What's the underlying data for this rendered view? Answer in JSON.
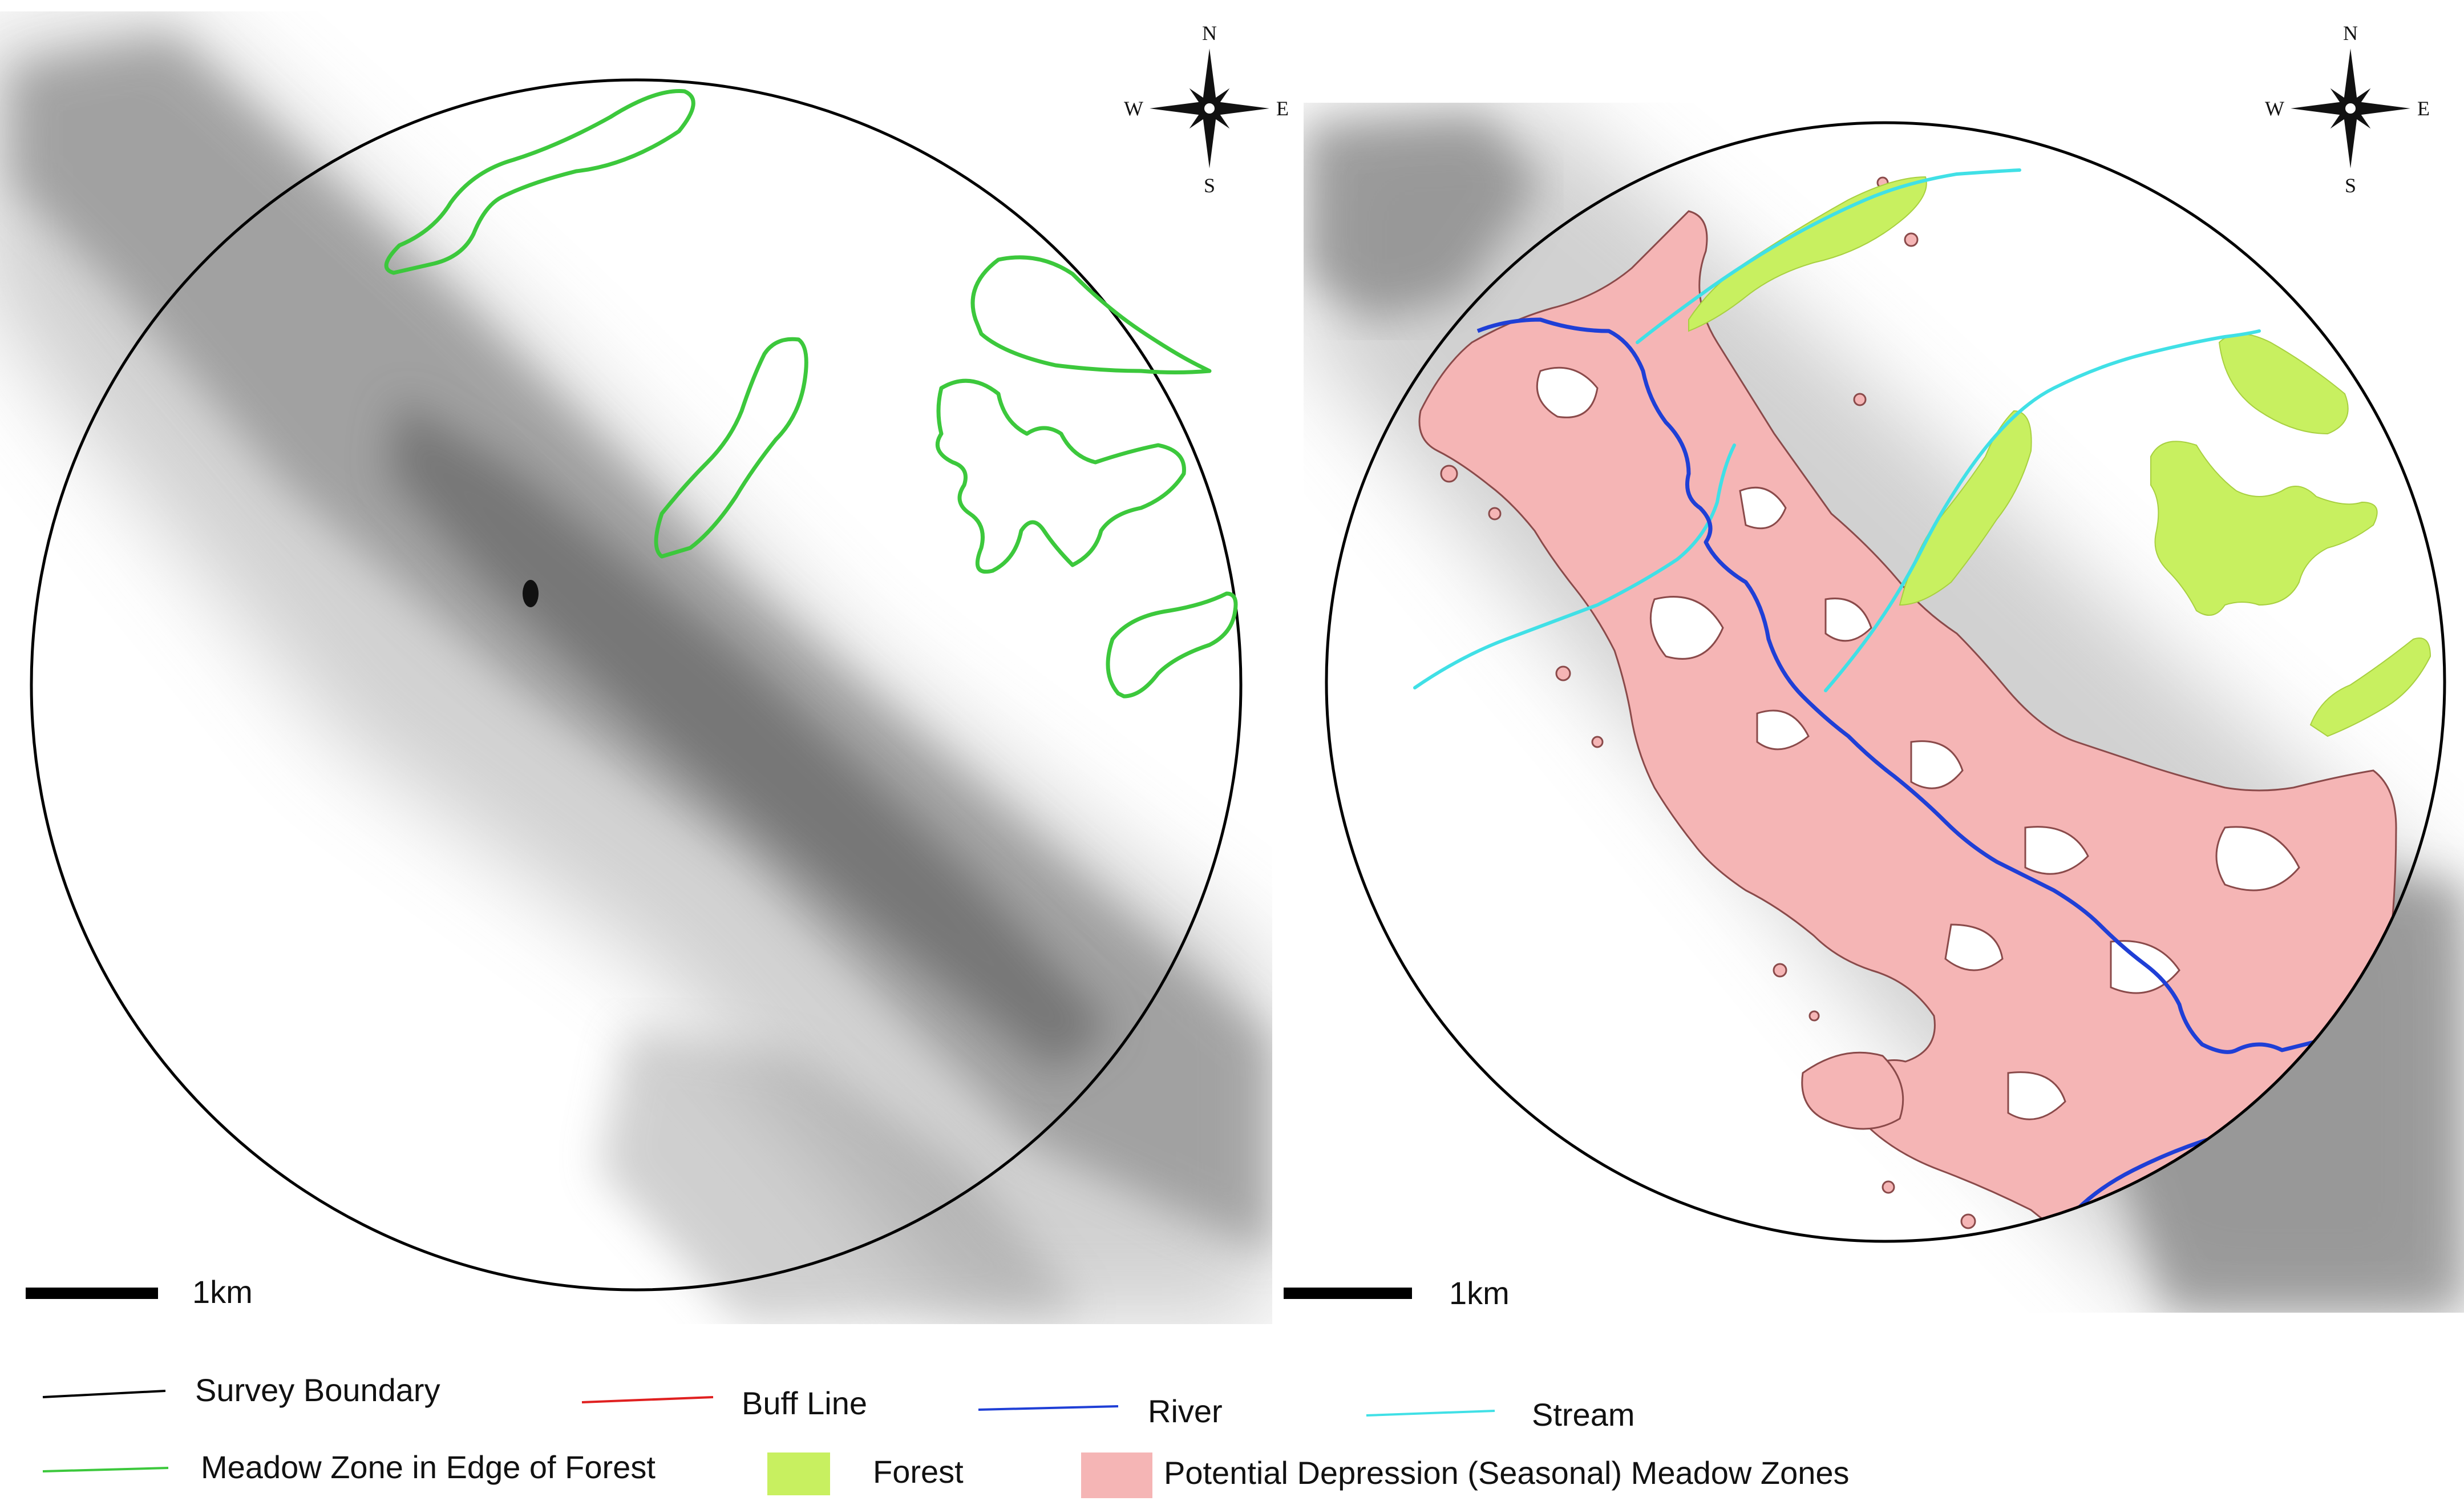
{
  "panels": [
    {
      "compass": {
        "n": "N",
        "s": "S",
        "e": "E",
        "w": "W"
      },
      "scale_label": "1km"
    },
    {
      "compass": {
        "n": "N",
        "s": "S",
        "e": "E",
        "w": "W"
      },
      "scale_label": "1km"
    }
  ],
  "legend": {
    "items": [
      {
        "label": "Survey Boundary",
        "symbol": "line",
        "color": "#000000"
      },
      {
        "label": "Buff Line",
        "symbol": "line",
        "color": "#e02020"
      },
      {
        "label": "River",
        "symbol": "line",
        "color": "#1f3fd6"
      },
      {
        "label": "Stream",
        "symbol": "line",
        "color": "#40e0e6"
      },
      {
        "label": "Meadow Zone in Edge of Forest",
        "symbol": "line",
        "color": "#3cc83c"
      },
      {
        "label": "Forest",
        "symbol": "fill",
        "color": "#c8f060"
      },
      {
        "label": "Potential Depression (Seasonal) Meadow Zones",
        "symbol": "fill",
        "color": "#f5b5b5"
      }
    ]
  },
  "colors": {
    "boundary": "#000000",
    "meadow_edge": "#3cc83c",
    "forest": "#c8f060",
    "depression": "#f5b5b5",
    "river": "#1f3fd6",
    "stream": "#40e0e6",
    "terrain": "#7a7a7a"
  }
}
